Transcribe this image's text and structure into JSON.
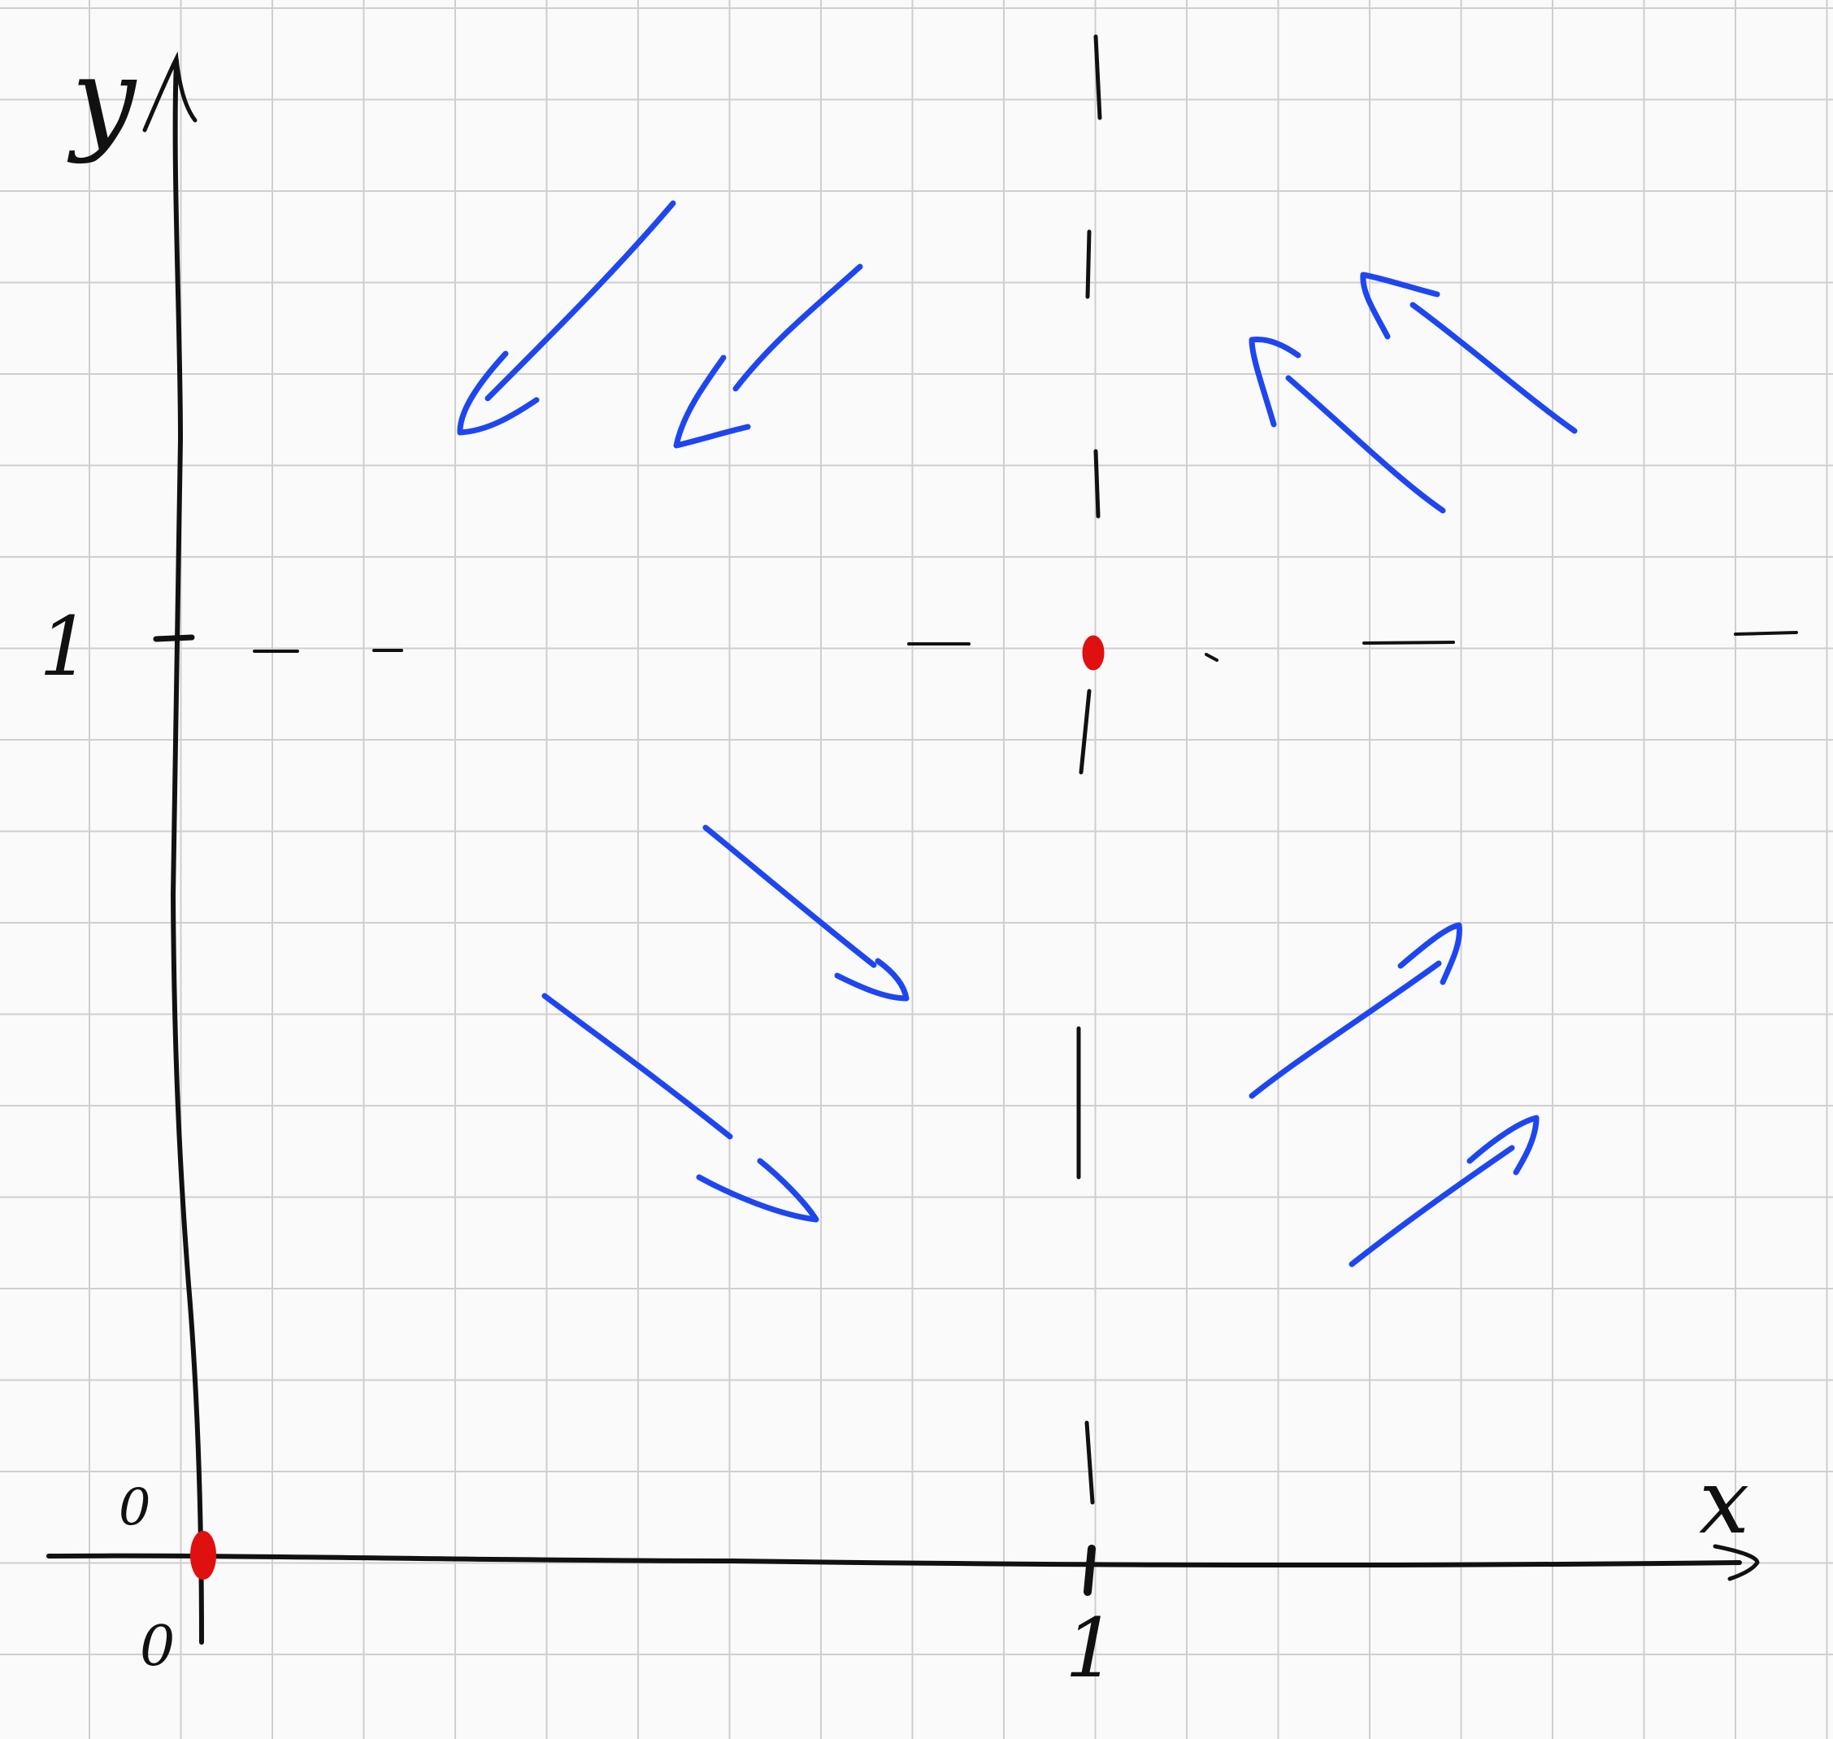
{
  "labels": {
    "y_axis": "y",
    "x_axis": "x",
    "origin_top": "0",
    "origin_bottom": "0",
    "y_tick": "1",
    "x_tick": "1"
  },
  "colors": {
    "paper": "#fafafa",
    "grid": "#cfcfcf",
    "ink": "#111111",
    "arrows": "#1e46f0",
    "points": "#e01010"
  },
  "diagram": {
    "type": "phase-portrait-sketch",
    "equilibrium_points": [
      {
        "x": 0,
        "y": 0
      },
      {
        "x": 1,
        "y": 1
      }
    ],
    "nullclines": [
      {
        "orientation": "vertical",
        "value": 1,
        "style": "dashed"
      },
      {
        "orientation": "horizontal",
        "value": 1,
        "style": "dashed"
      }
    ],
    "arrows": [
      {
        "region": "top-left",
        "direction": "down-left",
        "count": 2
      },
      {
        "region": "top-right",
        "direction": "up-left",
        "count": 2
      },
      {
        "region": "bottom-left",
        "direction": "down-right",
        "count": 2
      },
      {
        "region": "bottom-right",
        "direction": "up-right",
        "count": 2
      }
    ]
  }
}
